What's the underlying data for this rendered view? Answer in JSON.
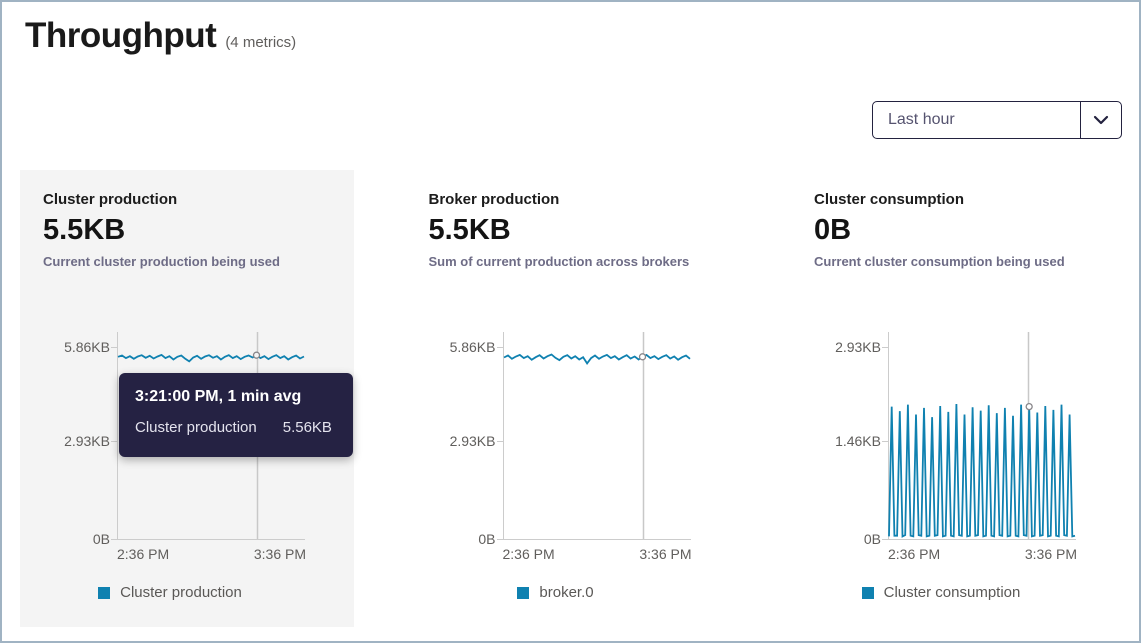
{
  "page": {
    "title": "Throughput",
    "metrics_count": "(4 metrics)"
  },
  "time_range_dropdown": {
    "value": "Last hour"
  },
  "colors": {
    "series_line": "#0f81b0",
    "axis": "#cccccc",
    "cursor": "#c8c8c8",
    "tooltip_bg": "#252243",
    "hovered_card_bg": "#f4f4f4",
    "page_border": "#a0b3c3"
  },
  "cards": [
    {
      "title": "Cluster production",
      "value": "5.5KB",
      "description": "Current cluster production being used",
      "legend": "Cluster production"
    },
    {
      "title": "Broker production",
      "value": "5.5KB",
      "description": "Sum of current production across brokers",
      "legend": "broker.0"
    },
    {
      "title": "Cluster consumption",
      "value": "0B",
      "description": "Current cluster consumption being used",
      "legend": "Cluster consumption"
    }
  ],
  "tooltip": {
    "header": "3:21:00 PM, 1 min avg",
    "series": "Cluster production",
    "value": "5.56KB"
  },
  "chart_data": [
    {
      "type": "line",
      "title": "Cluster production",
      "unit": "KB",
      "ylim": [
        0,
        5.86
      ],
      "ylabels": [
        "5.86KB",
        "2.93KB",
        "0B"
      ],
      "xlabels": [
        "2:36 PM",
        "3:36 PM"
      ],
      "x_range": [
        "2:36 PM",
        "3:36 PM"
      ],
      "cursor_frac": 0.75,
      "cursor_time": "3:21:00 PM",
      "cursor_value_kb": 5.56,
      "values": [
        5.56,
        5.6,
        5.52,
        5.58,
        5.5,
        5.57,
        5.61,
        5.53,
        5.59,
        5.51,
        5.57,
        5.62,
        5.52,
        5.58,
        5.48,
        5.56,
        5.6,
        5.5,
        5.42,
        5.54,
        5.59,
        5.5,
        5.57,
        5.61,
        5.53,
        5.58,
        5.48,
        5.56,
        5.61,
        5.52,
        5.58,
        5.49,
        5.56,
        5.6,
        5.54,
        5.61,
        5.52,
        5.58,
        5.49,
        5.56,
        5.61,
        5.52,
        5.58,
        5.48,
        5.55,
        5.6,
        5.51,
        5.57
      ]
    },
    {
      "type": "line",
      "title": "broker.0",
      "unit": "KB",
      "ylim": [
        0,
        5.86
      ],
      "ylabels": [
        "5.86KB",
        "2.93KB",
        "0B"
      ],
      "xlabels": [
        "2:36 PM",
        "3:36 PM"
      ],
      "x_range": [
        "2:36 PM",
        "3:36 PM"
      ],
      "cursor_frac": 0.75,
      "values": [
        5.54,
        5.6,
        5.5,
        5.57,
        5.62,
        5.52,
        5.58,
        5.47,
        5.55,
        5.61,
        5.51,
        5.58,
        5.63,
        5.53,
        5.46,
        5.56,
        5.61,
        5.51,
        5.58,
        5.48,
        5.55,
        5.36,
        5.52,
        5.6,
        5.5,
        5.57,
        5.62,
        5.52,
        5.58,
        5.48,
        5.55,
        5.61,
        5.51,
        5.57,
        5.48,
        5.56,
        5.62,
        5.52,
        5.58,
        5.49,
        5.56,
        5.61,
        5.51,
        5.57,
        5.47,
        5.55,
        5.6,
        5.5
      ]
    },
    {
      "type": "line",
      "title": "Cluster consumption",
      "unit": "KB",
      "ylim": [
        0,
        2.93
      ],
      "ylabels": [
        "2.93KB",
        "1.46KB",
        "0B"
      ],
      "xlabels": [
        "2:36 PM",
        "3:36 PM"
      ],
      "x_range": [
        "2:36 PM",
        "3:36 PM"
      ],
      "cursor_frac": 0.75,
      "values": [
        0.04,
        2.02,
        0.05,
        0.05,
        1.95,
        0.04,
        0.06,
        2.05,
        0.05,
        0.04,
        1.9,
        0.06,
        0.05,
        2.0,
        0.04,
        0.05,
        1.86,
        0.05,
        0.06,
        2.03,
        0.04,
        0.05,
        1.94,
        0.05,
        0.04,
        2.06,
        0.06,
        0.05,
        1.9,
        0.04,
        0.05,
        2.01,
        0.05,
        0.06,
        1.96,
        0.04,
        0.05,
        2.04,
        0.05,
        0.04,
        1.92,
        0.06,
        0.05,
        2.0,
        0.04,
        0.05,
        1.88,
        0.05,
        0.04,
        2.05,
        0.06,
        0.05,
        2.02,
        0.04,
        0.05,
        1.93,
        0.05,
        0.06,
        2.03,
        0.04,
        0.05,
        1.97,
        0.05,
        0.04,
        2.05,
        0.06,
        0.05,
        1.9,
        0.04,
        0.05
      ]
    }
  ]
}
